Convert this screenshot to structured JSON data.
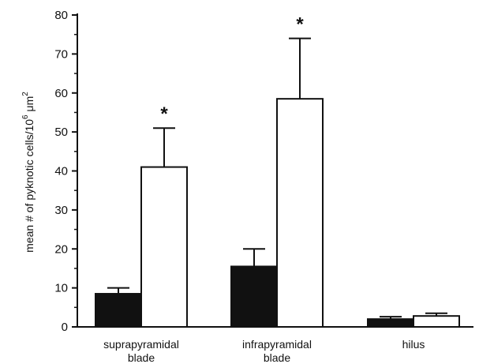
{
  "chart_data": {
    "type": "bar",
    "categories": [
      [
        "suprapyramidal",
        "blade"
      ],
      [
        "infrapyramidal",
        "blade"
      ],
      [
        "hilus"
      ]
    ],
    "series": [
      {
        "values": [
          8.5,
          15.5,
          2.0
        ],
        "errors": [
          1.5,
          4.5,
          0.6
        ],
        "color": "#111111",
        "fill": "solid"
      },
      {
        "values": [
          41.0,
          58.5,
          2.8
        ],
        "errors": [
          10.0,
          15.5,
          0.7
        ],
        "color": "#ffffff",
        "fill": "open"
      }
    ],
    "significance_marker": "*",
    "significant": [
      [
        false,
        true
      ],
      [
        false,
        true
      ],
      [
        false,
        false
      ]
    ],
    "ylabel_parts": [
      "mean # of pyknotic cells/10",
      "6",
      " μm",
      "2"
    ],
    "ylim": [
      0,
      80
    ],
    "yticks": [
      0,
      10,
      20,
      30,
      40,
      50,
      60,
      70,
      80
    ],
    "minor_ytick_step": 5
  }
}
